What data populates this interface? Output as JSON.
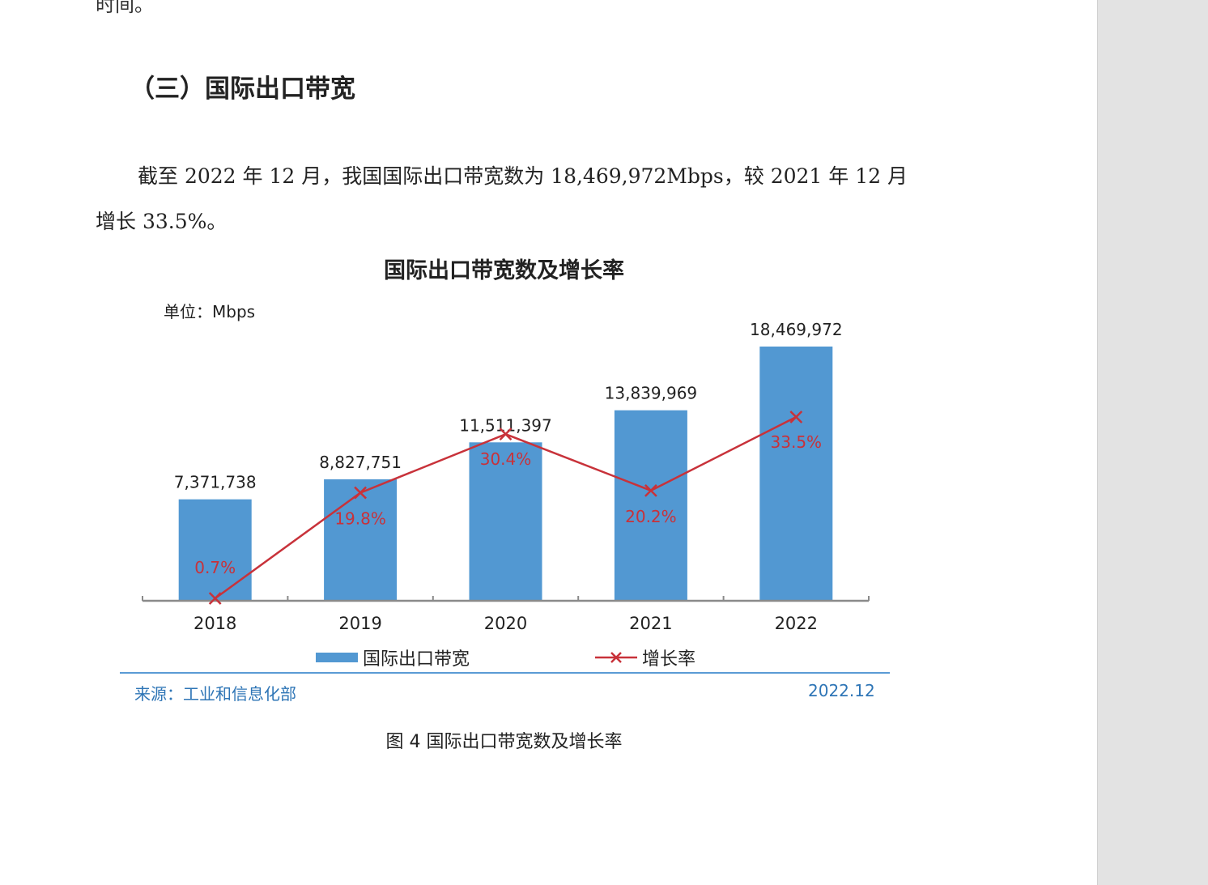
{
  "document": {
    "cut_line_text": "时间。",
    "section_title": "（三）国际出口带宽",
    "paragraph": "截至 2022 年 12 月，我国国际出口带宽数为 18,469,972Mbps，较 2021 年 12 月增长 33.5%。",
    "figure_caption": "图 4  国际出口带宽数及增长率"
  },
  "chart_data": {
    "type": "bar",
    "title": "国际出口带宽数及增长率",
    "unit_label": "单位：Mbps",
    "categories": [
      "2018",
      "2019",
      "2020",
      "2021",
      "2022"
    ],
    "series": [
      {
        "name": "国际出口带宽",
        "kind": "bar",
        "values": [
          7371738,
          8827751,
          11511397,
          13839969,
          18469972
        ],
        "labels": [
          "7,371,738",
          "8,827,751",
          "11,511,397",
          "13,839,969",
          "18,469,972"
        ],
        "color": "#5298d2"
      },
      {
        "name": "增长率",
        "kind": "line",
        "values": [
          0.7,
          19.8,
          30.4,
          20.2,
          33.5
        ],
        "labels": [
          "0.7%",
          "19.8%",
          "30.4%",
          "20.2%",
          "33.5%"
        ],
        "color": "#c8323a"
      }
    ],
    "ylim": [
      0,
      21000000
    ],
    "y2lim": [
      0,
      40
    ],
    "grid": false,
    "legend_position": "bottom",
    "source_left": "来源：工业和信息化部",
    "source_right": "2022.12"
  }
}
